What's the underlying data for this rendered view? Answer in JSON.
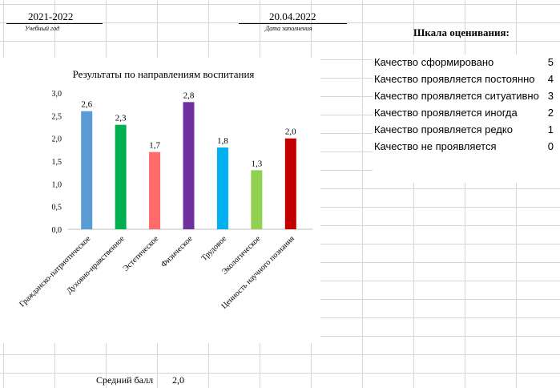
{
  "header": {
    "year_value": "2021-2022",
    "year_caption": "Учебный год",
    "date_value": "20.04.2022",
    "date_caption": "Дата заполнения"
  },
  "scale": {
    "title": "Шкала оценивания:",
    "items": [
      {
        "label": "Качество сформировано",
        "score": "5"
      },
      {
        "label": "Качество проявляется постоянно",
        "score": "4"
      },
      {
        "label": "Качество проявляется ситуативно",
        "score": "3"
      },
      {
        "label": "Качество проявляется иногда",
        "score": "2"
      },
      {
        "label": "Качество проявляется редко",
        "score": "1"
      },
      {
        "label": "Качество не проявляется",
        "score": "0"
      }
    ]
  },
  "footer": {
    "avg_label": "Средний балл",
    "avg_value": "2,0"
  },
  "chart_data": {
    "type": "bar",
    "title": "Результаты по направлениям воспитания",
    "categories": [
      "Гражданско-патриотическое",
      "Духовно-нравственное",
      "Эстетическое",
      "Физическое",
      "Трудовое",
      "Экологическое",
      "Ценность научного познания"
    ],
    "values": [
      2.6,
      2.3,
      1.7,
      2.8,
      1.8,
      1.3,
      2.0
    ],
    "value_labels": [
      "2,6",
      "2,3",
      "1,7",
      "2,8",
      "1,8",
      "1,3",
      "2,0"
    ],
    "colors": [
      "#5b9bd5",
      "#00b050",
      "#ff6b6b",
      "#7030a0",
      "#00b0f0",
      "#92d050",
      "#c00000"
    ],
    "ylim": [
      0,
      3
    ],
    "yticks": [
      "0,0",
      "0,5",
      "1,0",
      "1,5",
      "2,0",
      "2,5",
      "3,0"
    ],
    "grid": false,
    "legend": "none"
  }
}
